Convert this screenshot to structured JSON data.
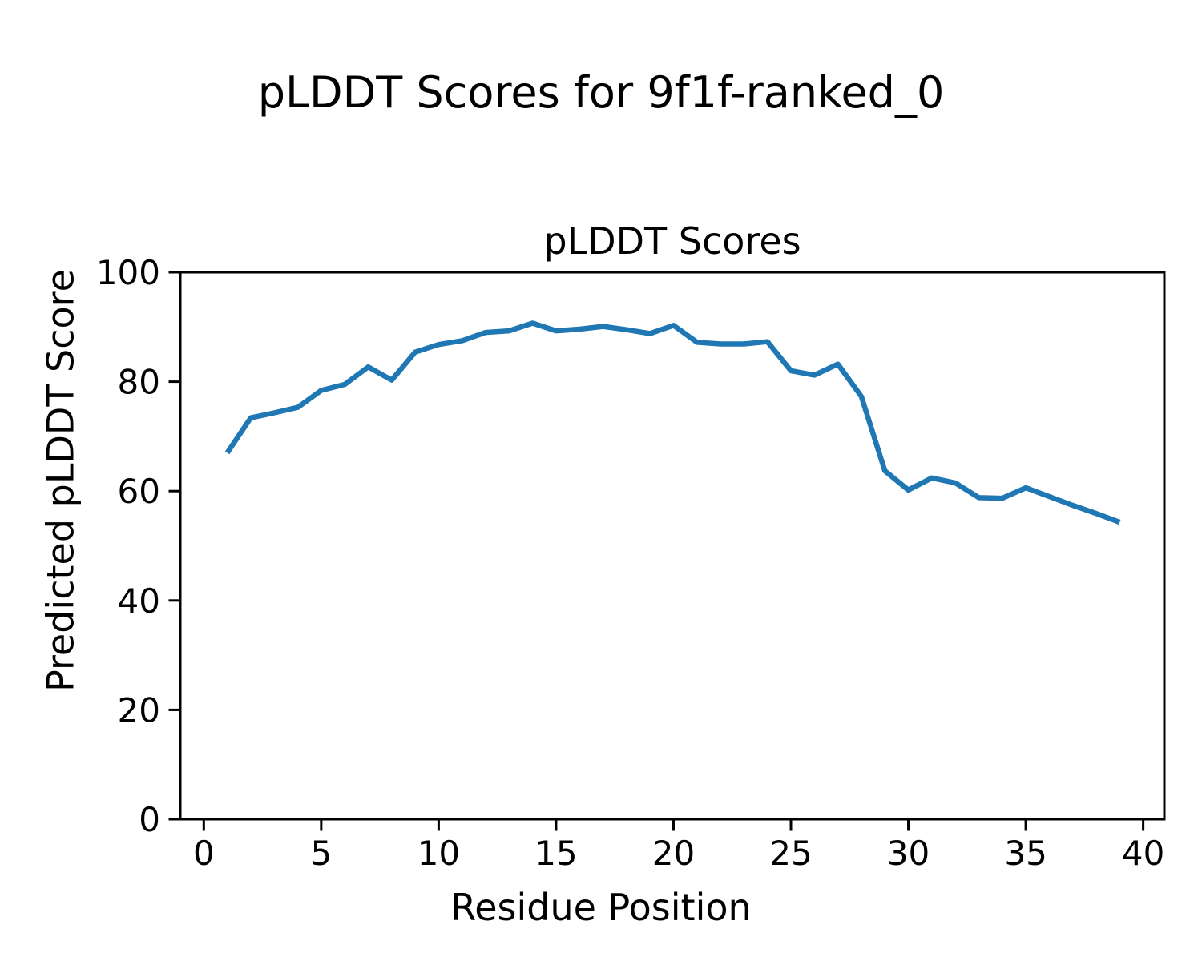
{
  "figure": {
    "suptitle": "pLDDT Scores for 9f1f-ranked_0",
    "axes_title": "pLDDT Scores",
    "xlabel": "Residue Position",
    "ylabel": "Predicted pLDDT Score"
  },
  "chart_data": {
    "type": "line",
    "title": "pLDDT Scores",
    "suptitle": "pLDDT Scores for 9f1f-ranked_0",
    "xlabel": "Residue Position",
    "ylabel": "Predicted pLDDT Score",
    "x": [
      1,
      2,
      3,
      4,
      5,
      6,
      7,
      8,
      9,
      10,
      11,
      12,
      13,
      14,
      15,
      16,
      17,
      18,
      19,
      20,
      21,
      22,
      23,
      24,
      25,
      26,
      27,
      28,
      29,
      30,
      31,
      32,
      33,
      34,
      35,
      36,
      37,
      38,
      39
    ],
    "y": [
      67.0,
      73.4,
      74.3,
      75.3,
      78.4,
      79.5,
      82.7,
      80.3,
      85.4,
      86.8,
      87.5,
      89.0,
      89.3,
      90.7,
      89.3,
      89.6,
      90.1,
      89.5,
      88.8,
      90.3,
      87.2,
      86.9,
      86.9,
      87.3,
      82.0,
      81.2,
      83.2,
      77.3,
      63.7,
      60.2,
      62.4,
      61.5,
      58.8,
      58.7,
      60.6,
      59.0,
      57.4,
      55.9,
      54.3
    ],
    "xlim": [
      -1.0,
      40.9
    ],
    "ylim": [
      0,
      100
    ],
    "xticks": [
      0,
      5,
      10,
      15,
      20,
      25,
      30,
      35,
      40
    ],
    "yticks": [
      0,
      20,
      40,
      60,
      80,
      100
    ],
    "line_color": "#1f77b4",
    "axis_color": "#000000",
    "grid": false,
    "legend": null
  }
}
